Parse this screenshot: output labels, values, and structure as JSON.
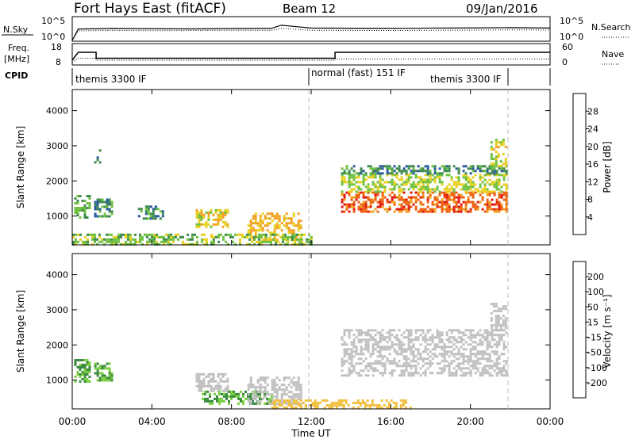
{
  "header": {
    "station": "Fort Hays East (fitACF)",
    "beam": "Beam 12",
    "date": "09/Jan/2016"
  },
  "strip_panels": {
    "nsky": {
      "label": "N.Sky",
      "ticks": [
        "10^5",
        "10^0"
      ]
    },
    "nsearch": {
      "label": "N.Search",
      "ticks": [
        "10^5",
        "10^0"
      ]
    },
    "freq": {
      "label_line1": "Freq.",
      "label_line2": "[MHz]",
      "ticks": [
        "18",
        "8"
      ]
    },
    "nave": {
      "label": "Nave",
      "ticks": [
        "60",
        "0"
      ]
    },
    "cpid": {
      "label": "CPID",
      "segments": [
        "themis 3300 IF",
        "normal (fast) 151 IF",
        "themis 3300 IF"
      ],
      "boundaries_hours": [
        12.0,
        21.8
      ]
    }
  },
  "axes": {
    "xlabel": "Time UT",
    "x_ticks": [
      "00:00",
      "04:00",
      "08:00",
      "12:00",
      "16:00",
      "20:00",
      "00:00"
    ],
    "ylabel": "Slant Range [km]",
    "y_ticks": [
      "1000",
      "2000",
      "3000",
      "4000"
    ]
  },
  "colorbars": {
    "power": {
      "label": "Power [dB]",
      "ticks": [
        "4",
        "8",
        "12",
        "16",
        "20",
        "24",
        "28"
      ],
      "colors": [
        "#0a1ee6",
        "#2a58a0",
        "#3d8a4e",
        "#6fc040",
        "#e8d020",
        "#f2a020",
        "#ee6010",
        "#e01810"
      ]
    },
    "velocity": {
      "label": "Velocity [m s⁻¹]",
      "ticks": [
        "200",
        "100",
        "50",
        "15",
        "-15",
        "-50",
        "-100",
        "-200"
      ],
      "colors": [
        "#1a2aa0",
        "#2c6a7a",
        "#3a8a40",
        "#7ad040",
        "#c0c0c0",
        "#f0c040",
        "#f09020",
        "#f05818",
        "#e01010"
      ]
    }
  },
  "chart_data": [
    {
      "type": "line",
      "title": "N.Sky / N.Search",
      "x_hours": [
        0,
        0.3,
        2,
        4,
        6,
        8,
        10,
        10.5,
        12,
        14,
        16,
        18,
        20,
        22,
        24
      ],
      "series": [
        {
          "name": "N.Sky",
          "values": [
            1,
            300,
            400,
            350,
            320,
            380,
            420,
            2000,
            500,
            450,
            420,
            480,
            520,
            600,
            500
          ]
        },
        {
          "name": "N.Search",
          "values": [
            1,
            120,
            150,
            130,
            140,
            160,
            150,
            400,
            160,
            150,
            140,
            160,
            170,
            200,
            180
          ]
        }
      ],
      "ylim": [
        1,
        100000
      ]
    },
    {
      "type": "line",
      "title": "Freq. [MHz] / Nave",
      "x_hours": [
        0,
        0.3,
        1.2,
        1.2,
        13.2,
        13.2,
        24
      ],
      "series": [
        {
          "name": "Freq.",
          "values": [
            10,
            14,
            14,
            11,
            11,
            14,
            14
          ]
        },
        {
          "name": "Nave",
          "values": [
            5,
            18,
            18,
            12,
            12,
            16,
            16
          ]
        }
      ],
      "ylim_freq": [
        8,
        18
      ],
      "ylim_nave": [
        0,
        60
      ]
    },
    {
      "type": "heatmap",
      "title": "Power",
      "xlabel": "Time UT",
      "ylabel": "Slant Range [km]",
      "xlim_hours": [
        0,
        24
      ],
      "ylim_km": [
        180,
        4600
      ],
      "regions": [
        {
          "t": [
            0.1,
            0.9
          ],
          "r": [
            950,
            1600
          ],
          "value_db": 12
        },
        {
          "t": [
            1.1,
            2.0
          ],
          "r": [
            1000,
            1500
          ],
          "value_db": 10
        },
        {
          "t": [
            1.1,
            1.4
          ],
          "r": [
            2500,
            2900
          ],
          "value_db": 8
        },
        {
          "t": [
            3.3,
            4.5
          ],
          "r": [
            950,
            1300
          ],
          "value_db": 9
        },
        {
          "t": [
            6.2,
            7.8
          ],
          "r": [
            700,
            1200
          ],
          "value_db": 18
        },
        {
          "t": [
            8.8,
            11.5
          ],
          "r": [
            350,
            1100
          ],
          "value_db": 20
        },
        {
          "t": [
            0,
            12.0
          ],
          "r": [
            180,
            500
          ],
          "value_db": 14
        },
        {
          "t": [
            13.5,
            21.8
          ],
          "r": [
            1100,
            1700
          ],
          "value_db": 26
        },
        {
          "t": [
            13.5,
            21.8
          ],
          "r": [
            1700,
            2200
          ],
          "value_db": 16
        },
        {
          "t": [
            13.5,
            21.8
          ],
          "r": [
            2200,
            2450
          ],
          "value_db": 10
        },
        {
          "t": [
            21.0,
            21.8
          ],
          "r": [
            2400,
            3200
          ],
          "value_db": 18
        }
      ]
    },
    {
      "type": "heatmap",
      "title": "Velocity",
      "xlabel": "Time UT",
      "ylabel": "Slant Range [km]",
      "xlim_hours": [
        0,
        24
      ],
      "ylim_km": [
        180,
        4600
      ],
      "regions": [
        {
          "t": [
            0.1,
            0.9
          ],
          "r": [
            950,
            1600
          ],
          "value_ms": 50
        },
        {
          "t": [
            1.1,
            2.0
          ],
          "r": [
            1000,
            1500
          ],
          "value_ms": 50
        },
        {
          "t": [
            6.2,
            7.8
          ],
          "r": [
            700,
            1200
          ],
          "value_ms": 0
        },
        {
          "t": [
            6.5,
            10.0
          ],
          "r": [
            300,
            700
          ],
          "value_ms": 50
        },
        {
          "t": [
            8.8,
            11.5
          ],
          "r": [
            350,
            1100
          ],
          "value_ms": 0
        },
        {
          "t": [
            10.0,
            17.0
          ],
          "r": [
            180,
            450
          ],
          "value_ms": -40
        },
        {
          "t": [
            13.5,
            21.8
          ],
          "r": [
            1100,
            2450
          ],
          "value_ms": 0
        },
        {
          "t": [
            21.0,
            21.8
          ],
          "r": [
            2400,
            3200
          ],
          "value_ms": 0
        }
      ]
    }
  ]
}
